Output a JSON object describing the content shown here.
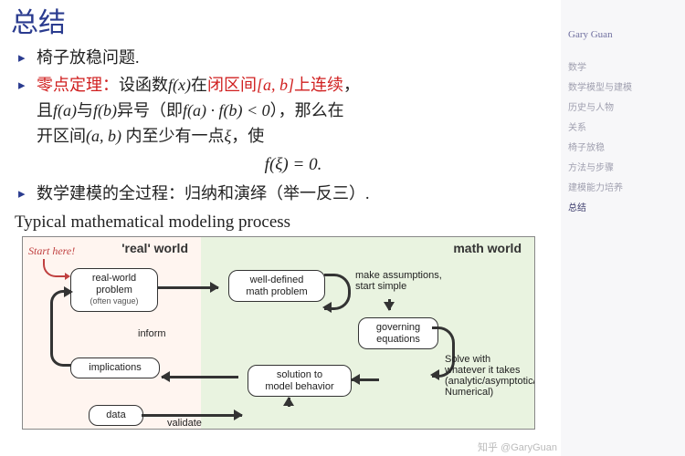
{
  "title": "总结",
  "sidebar": {
    "author": "Gary Guan",
    "items": [
      "数学",
      "数学模型与建模",
      "历史与人物",
      "关系",
      "椅子放稳",
      "方法与步骤",
      "建模能力培养",
      "总结"
    ],
    "active_index": 7
  },
  "bullets": {
    "b1": "椅子放稳问题.",
    "b2_theorem": "零点定理：",
    "b2_pre": "设函数",
    "b2_fx": "f(x)",
    "b2_mid1": "在",
    "b2_interval_label": "闭区间",
    "b2_interval": "[a, b]",
    "b2_cont": "上连续",
    "b2_comma": "，",
    "b2_line2a": "且",
    "b2_fa": "f(a)",
    "b2_and": "与",
    "b2_fb": "f(b)",
    "b2_diff": "异号（即",
    "b2_prod": "f(a) · f(b) < 0",
    "b2_close": "），那么在",
    "b2_line3": "开区间",
    "b2_openint": "(a, b)",
    "b2_line3b": " 内至少有一点",
    "b2_xi": "ξ",
    "b2_line3c": "，使",
    "formula": "f(ξ) = 0.",
    "b3": "数学建模的全过程：归纳和演绎（举一反三）."
  },
  "diagram_title": "Typical mathematical modeling process",
  "diagram": {
    "start_here": "Start here!",
    "real_label": "'real' world",
    "math_label": "math world",
    "nodes": {
      "rwp": {
        "line1": "real-world",
        "line2": "problem",
        "sub": "(often vague)"
      },
      "wdp": {
        "line1": "well-defined",
        "line2": "math problem"
      },
      "gov": {
        "line1": "governing",
        "line2": "equations"
      },
      "sol": {
        "line1": "solution to",
        "line2": "model behavior"
      },
      "impl": "implications",
      "data": "data"
    },
    "edge_labels": {
      "assume": {
        "l1": "make assumptions,",
        "l2": "start simple"
      },
      "solve": {
        "l1": "Solve with",
        "l2": "whatever it takes",
        "l3": "(analytic/asymptotic/",
        "l4": "Numerical)"
      },
      "inform": "inform",
      "validate": "validate"
    }
  },
  "watermark": "知乎 @GaryGuan",
  "colors": {
    "title": "#2a3b8f",
    "red": "#d02020",
    "real_bg": "#fff5f0",
    "math_bg": "#e9f3e0",
    "start": "#c04040"
  }
}
